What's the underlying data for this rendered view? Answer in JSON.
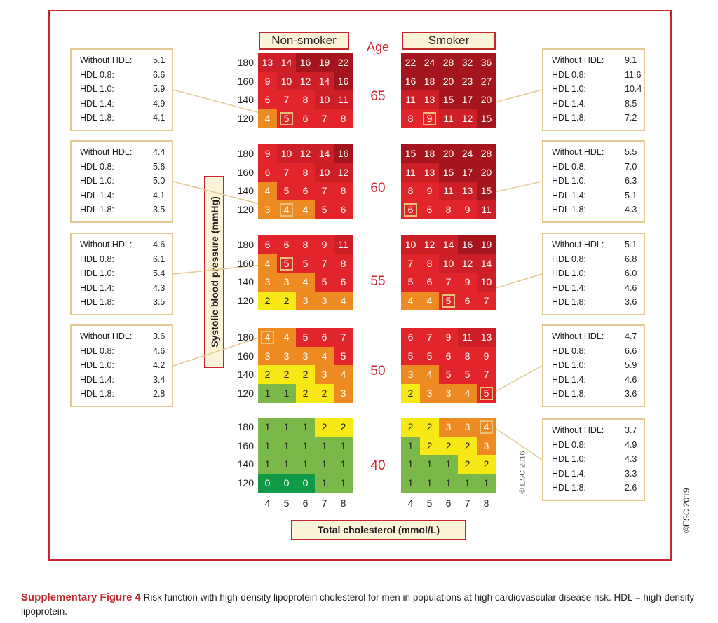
{
  "chart_data": {
    "type": "heatmap",
    "headers": {
      "non_smoker": "Non-smoker",
      "smoker": "Smoker",
      "age": "Age"
    },
    "y_axis_label": "Systolic blood pressure (mmHg)",
    "x_axis_label": "Total cholesterol (mmol/L)",
    "sbp_levels": [
      "180",
      "160",
      "140",
      "120"
    ],
    "cholesterol_levels": [
      "4",
      "5",
      "6",
      "7",
      "8"
    ],
    "colors": {
      "dark_red": "#a4151e",
      "red": "#d92128",
      "orange": "#ee8a22",
      "yellow": "#f7e816",
      "green": "#7ab84a",
      "dark_green": "#0f9a48"
    },
    "panels": [
      {
        "age": "65",
        "non_smoker": [
          [
            13,
            14,
            16,
            19,
            22
          ],
          [
            9,
            10,
            12,
            14,
            16
          ],
          [
            6,
            7,
            8,
            10,
            11
          ],
          [
            4,
            5,
            6,
            7,
            8
          ]
        ],
        "smoker": [
          [
            22,
            24,
            28,
            32,
            36
          ],
          [
            16,
            18,
            20,
            23,
            27
          ],
          [
            11,
            13,
            15,
            17,
            20
          ],
          [
            8,
            9,
            11,
            12,
            15
          ]
        ]
      },
      {
        "age": "60",
        "non_smoker": [
          [
            9,
            10,
            12,
            14,
            16
          ],
          [
            6,
            7,
            8,
            10,
            12
          ],
          [
            4,
            5,
            6,
            7,
            8
          ],
          [
            3,
            4,
            4,
            5,
            6
          ]
        ],
        "smoker": [
          [
            15,
            18,
            20,
            24,
            28
          ],
          [
            11,
            13,
            15,
            17,
            20
          ],
          [
            8,
            9,
            11,
            13,
            15
          ],
          [
            6,
            6,
            8,
            9,
            11
          ]
        ]
      },
      {
        "age": "55",
        "non_smoker": [
          [
            6,
            6,
            8,
            9,
            11
          ],
          [
            4,
            5,
            5,
            7,
            8
          ],
          [
            3,
            3,
            4,
            5,
            6
          ],
          [
            2,
            2,
            3,
            3,
            4
          ]
        ],
        "smoker": [
          [
            10,
            12,
            14,
            16,
            19
          ],
          [
            7,
            8,
            10,
            12,
            14
          ],
          [
            5,
            6,
            7,
            9,
            10
          ],
          [
            4,
            4,
            5,
            6,
            7
          ]
        ]
      },
      {
        "age": "50",
        "non_smoker": [
          [
            4,
            4,
            5,
            6,
            7
          ],
          [
            3,
            3,
            3,
            4,
            5
          ],
          [
            2,
            2,
            2,
            3,
            4
          ],
          [
            1,
            1,
            2,
            2,
            3
          ]
        ],
        "smoker": [
          [
            6,
            7,
            9,
            11,
            13
          ],
          [
            5,
            5,
            6,
            8,
            9
          ],
          [
            3,
            4,
            5,
            5,
            7
          ],
          [
            2,
            3,
            3,
            4,
            5
          ]
        ]
      },
      {
        "age": "40",
        "non_smoker": [
          [
            1,
            1,
            1,
            2,
            2
          ],
          [
            1,
            1,
            1,
            1,
            1
          ],
          [
            1,
            1,
            1,
            1,
            1
          ],
          [
            0,
            0,
            0,
            1,
            1
          ]
        ],
        "smoker": [
          [
            2,
            2,
            3,
            3,
            4
          ],
          [
            1,
            2,
            2,
            2,
            3
          ],
          [
            1,
            1,
            1,
            2,
            2
          ],
          [
            1,
            1,
            1,
            1,
            1
          ]
        ]
      }
    ],
    "hdl_boxes": {
      "left": [
        {
          "values": [
            "5.1",
            "6.6",
            "5.9",
            "4.9",
            "4.1"
          ],
          "cell": {
            "panel": 0,
            "row": 3,
            "col": 1
          }
        },
        {
          "values": [
            "4.4",
            "5.6",
            "5.0",
            "4.1",
            "3.5"
          ],
          "cell": {
            "panel": 1,
            "row": 3,
            "col": 1
          }
        },
        {
          "values": [
            "4.6",
            "6.1",
            "5.4",
            "4.3",
            "3.5"
          ],
          "cell": {
            "panel": 2,
            "row": 1,
            "col": 1
          }
        },
        {
          "values": [
            "3.6",
            "4.6",
            "4.2",
            "3.4",
            "2.8"
          ],
          "cell": {
            "panel": 3,
            "row": 0,
            "col": 0
          }
        }
      ],
      "right": [
        {
          "values": [
            "9.1",
            "11.6",
            "10.4",
            "8.5",
            "7.2"
          ],
          "cell": {
            "panel": 0,
            "row": 3,
            "col": 1
          }
        },
        {
          "values": [
            "5.5",
            "7.0",
            "6.3",
            "5.1",
            "4.3"
          ],
          "cell": {
            "panel": 1,
            "row": 3,
            "col": 0
          }
        },
        {
          "values": [
            "5.1",
            "6.8",
            "6.0",
            "4.6",
            "3.6"
          ],
          "cell": {
            "panel": 2,
            "row": 3,
            "col": 2
          }
        },
        {
          "values": [
            "4.7",
            "6.6",
            "5.9",
            "4.6",
            "3.6"
          ],
          "cell": {
            "panel": 3,
            "row": 3,
            "col": 4
          }
        },
        {
          "values": [
            "3.7",
            "4.9",
            "4.3",
            "3.3",
            "2.6"
          ],
          "cell": {
            "panel": 4,
            "row": 0,
            "col": 4
          }
        }
      ],
      "row_labels": [
        "Without HDL:",
        "HDL 0.8:",
        "HDL 1.0:",
        "HDL 1.4:",
        "HDL 1.8:"
      ]
    }
  },
  "watermarks": {
    "esc_2016": "© ESC 2016",
    "esc_2019": "©ESC 2019"
  },
  "caption": {
    "label": "Supplementary Figure 4",
    "text": " Risk function with high-density lipoprotein cholesterol for men in populations at high cardiovascular disease risk. HDL = high-density lipoprotein."
  }
}
